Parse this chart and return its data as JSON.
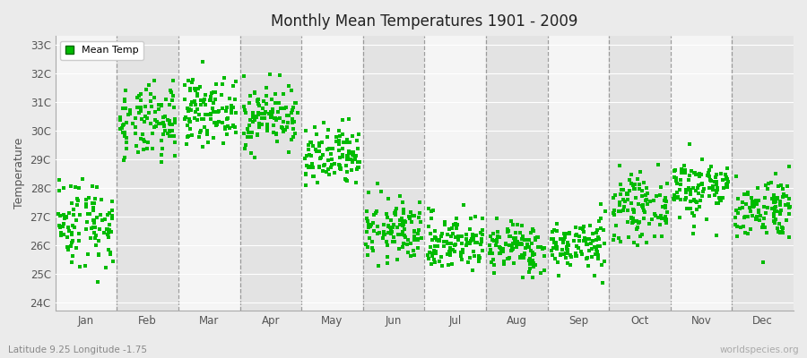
{
  "title": "Monthly Mean Temperatures 1901 - 2009",
  "ylabel": "Temperature",
  "xlabel_labels": [
    "Jan",
    "Feb",
    "Mar",
    "Apr",
    "May",
    "Jun",
    "Jul",
    "Aug",
    "Sep",
    "Oct",
    "Nov",
    "Dec"
  ],
  "ytick_labels": [
    "24C",
    "25C",
    "26C",
    "27C",
    "28C",
    "29C",
    "30C",
    "31C",
    "32C",
    "33C"
  ],
  "ytick_values": [
    24,
    25,
    26,
    27,
    28,
    29,
    30,
    31,
    32,
    33
  ],
  "ylim": [
    23.7,
    33.3
  ],
  "dot_color": "#00bb00",
  "dot_size": 7,
  "legend_label": "Mean Temp",
  "bg_color": "#ebebeb",
  "band_light": "#f5f5f5",
  "band_dark": "#e3e3e3",
  "subtitle": "Latitude 9.25 Longitude -1.75",
  "watermark": "worldspecies.org",
  "n_years": 109,
  "month_means": [
    26.8,
    30.2,
    30.7,
    30.5,
    29.0,
    26.5,
    26.1,
    25.9,
    26.0,
    27.3,
    28.0,
    27.3
  ],
  "month_stds": [
    0.8,
    0.65,
    0.55,
    0.55,
    0.55,
    0.55,
    0.5,
    0.45,
    0.45,
    0.55,
    0.55,
    0.55
  ]
}
